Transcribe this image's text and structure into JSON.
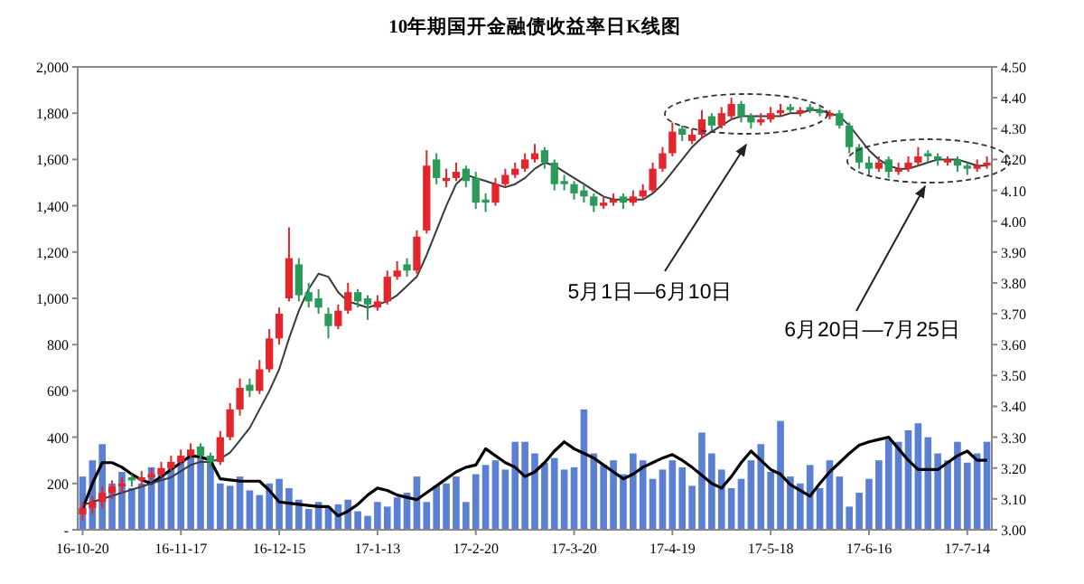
{
  "chart_data": {
    "type": "candlestick",
    "title": "10年期国开金融债收益率日K线图",
    "categories": [
      "16-10-20",
      null,
      null,
      null,
      null,
      null,
      null,
      null,
      null,
      null,
      "16-11-17",
      null,
      null,
      null,
      null,
      null,
      null,
      null,
      null,
      null,
      "16-12-15",
      null,
      null,
      null,
      null,
      null,
      null,
      null,
      null,
      null,
      "17-1-13",
      null,
      null,
      null,
      null,
      null,
      null,
      null,
      null,
      null,
      "17-2-20",
      null,
      null,
      null,
      null,
      null,
      null,
      null,
      null,
      null,
      "17-3-20",
      null,
      null,
      null,
      null,
      null,
      null,
      null,
      null,
      null,
      "17-4-19",
      null,
      null,
      null,
      null,
      null,
      null,
      null,
      null,
      null,
      "17-5-18",
      null,
      null,
      null,
      null,
      null,
      null,
      null,
      null,
      null,
      "17-6-16",
      null,
      null,
      null,
      null,
      null,
      null,
      null,
      null,
      null,
      "17-7-14",
      null,
      null
    ],
    "ohlc": [
      [
        3.05,
        3.09,
        3.03,
        3.07
      ],
      [
        3.07,
        3.11,
        3.05,
        3.09
      ],
      [
        3.09,
        3.14,
        3.07,
        3.12
      ],
      [
        3.12,
        3.16,
        3.1,
        3.14
      ],
      [
        3.14,
        3.17,
        3.12,
        3.15
      ],
      [
        3.17,
        3.18,
        3.14,
        3.16
      ],
      [
        3.16,
        3.19,
        3.14,
        3.17
      ],
      [
        3.17,
        3.2,
        3.16,
        3.18
      ],
      [
        3.18,
        3.22,
        3.17,
        3.2
      ],
      [
        3.2,
        3.24,
        3.19,
        3.22
      ],
      [
        3.22,
        3.26,
        3.21,
        3.24
      ],
      [
        3.24,
        3.28,
        3.23,
        3.26
      ],
      [
        3.27,
        3.28,
        3.23,
        3.24
      ],
      [
        3.24,
        3.25,
        3.2,
        3.22
      ],
      [
        3.22,
        3.32,
        3.21,
        3.3
      ],
      [
        3.3,
        3.41,
        3.29,
        3.39
      ],
      [
        3.39,
        3.49,
        3.37,
        3.46
      ],
      [
        3.47,
        3.49,
        3.43,
        3.45
      ],
      [
        3.45,
        3.55,
        3.44,
        3.52
      ],
      [
        3.52,
        3.65,
        3.51,
        3.62
      ],
      [
        3.62,
        3.72,
        3.6,
        3.7
      ],
      [
        3.75,
        3.98,
        3.74,
        3.88
      ],
      [
        3.86,
        3.88,
        3.74,
        3.76
      ],
      [
        3.77,
        3.8,
        3.72,
        3.74
      ],
      [
        3.75,
        3.78,
        3.7,
        3.72
      ],
      [
        3.7,
        3.72,
        3.62,
        3.66
      ],
      [
        3.66,
        3.73,
        3.65,
        3.71
      ],
      [
        3.71,
        3.8,
        3.7,
        3.77
      ],
      [
        3.77,
        3.78,
        3.72,
        3.74
      ],
      [
        3.75,
        3.76,
        3.68,
        3.73
      ],
      [
        3.72,
        3.76,
        3.71,
        3.74
      ],
      [
        3.74,
        3.84,
        3.73,
        3.82
      ],
      [
        3.82,
        3.87,
        3.81,
        3.84
      ],
      [
        3.86,
        3.88,
        3.82,
        3.84
      ],
      [
        3.84,
        3.97,
        3.83,
        3.95
      ],
      [
        3.97,
        4.23,
        3.96,
        4.18
      ],
      [
        4.2,
        4.22,
        4.12,
        4.14
      ],
      [
        4.13,
        4.17,
        4.11,
        4.14
      ],
      [
        4.14,
        4.19,
        4.13,
        4.16
      ],
      [
        4.17,
        4.18,
        4.11,
        4.13
      ],
      [
        4.14,
        4.16,
        4.04,
        4.06
      ],
      [
        4.07,
        4.09,
        4.03,
        4.06
      ],
      [
        4.06,
        4.14,
        4.05,
        4.12
      ],
      [
        4.12,
        4.17,
        4.11,
        4.15
      ],
      [
        4.15,
        4.19,
        4.14,
        4.17
      ],
      [
        4.17,
        4.22,
        4.16,
        4.2
      ],
      [
        4.2,
        4.25,
        4.19,
        4.22
      ],
      [
        4.23,
        4.24,
        4.17,
        4.19
      ],
      [
        4.19,
        4.2,
        4.1,
        4.12
      ],
      [
        4.13,
        4.15,
        4.1,
        4.12
      ],
      [
        4.12,
        4.13,
        4.07,
        4.09
      ],
      [
        4.1,
        4.12,
        4.06,
        4.08
      ],
      [
        4.08,
        4.09,
        4.03,
        4.05
      ],
      [
        4.05,
        4.08,
        4.04,
        4.06
      ],
      [
        4.06,
        4.09,
        4.05,
        4.07
      ],
      [
        4.08,
        4.09,
        4.04,
        4.06
      ],
      [
        4.06,
        4.1,
        4.05,
        4.08
      ],
      [
        4.08,
        4.12,
        4.07,
        4.1
      ],
      [
        4.1,
        4.19,
        4.09,
        4.17
      ],
      [
        4.17,
        4.24,
        4.16,
        4.22
      ],
      [
        4.22,
        4.32,
        4.21,
        4.29
      ],
      [
        4.3,
        4.31,
        4.26,
        4.28
      ],
      [
        4.26,
        4.3,
        4.25,
        4.28
      ],
      [
        4.28,
        4.36,
        4.27,
        4.33
      ],
      [
        4.34,
        4.35,
        4.29,
        4.31
      ],
      [
        4.31,
        4.37,
        4.3,
        4.35
      ],
      [
        4.34,
        4.4,
        4.33,
        4.38
      ],
      [
        4.38,
        4.39,
        4.32,
        4.34
      ],
      [
        4.34,
        4.35,
        4.3,
        4.32
      ],
      [
        4.32,
        4.35,
        4.31,
        4.33
      ],
      [
        4.33,
        4.37,
        4.32,
        4.35
      ],
      [
        4.35,
        4.38,
        4.34,
        4.36
      ],
      [
        4.37,
        4.38,
        4.35,
        4.36
      ],
      [
        4.35,
        4.37,
        4.34,
        4.36
      ],
      [
        4.37,
        4.38,
        4.35,
        4.36
      ],
      [
        4.36,
        4.37,
        4.34,
        4.35
      ],
      [
        4.34,
        4.36,
        4.33,
        4.35
      ],
      [
        4.35,
        4.36,
        4.3,
        4.31
      ],
      [
        4.31,
        4.32,
        4.22,
        4.24
      ],
      [
        4.24,
        4.25,
        4.17,
        4.19
      ],
      [
        4.19,
        4.21,
        4.15,
        4.17
      ],
      [
        4.17,
        4.21,
        4.16,
        4.19
      ],
      [
        4.2,
        4.21,
        4.14,
        4.16
      ],
      [
        4.16,
        4.19,
        4.15,
        4.17
      ],
      [
        4.17,
        4.21,
        4.16,
        4.19
      ],
      [
        4.19,
        4.24,
        4.18,
        4.21
      ],
      [
        4.22,
        4.23,
        4.19,
        4.21
      ],
      [
        4.21,
        4.22,
        4.18,
        4.2
      ],
      [
        4.19,
        4.21,
        4.18,
        4.2
      ],
      [
        4.2,
        4.21,
        4.16,
        4.18
      ],
      [
        4.18,
        4.19,
        4.15,
        4.17
      ],
      [
        4.17,
        4.2,
        4.16,
        4.18
      ],
      [
        4.18,
        4.21,
        4.17,
        4.19
      ]
    ],
    "colors": [
      "#e3262b",
      "#e3262b",
      "#e3262b",
      "#e3262b",
      "#e3262b",
      "#2a9a58",
      "#e3262b",
      "#e3262b",
      "#e3262b",
      "#e3262b",
      "#e3262b",
      "#e3262b",
      "#2a9a58",
      "#2a9a58",
      "#e3262b",
      "#e3262b",
      "#e3262b",
      "#2a9a58",
      "#e3262b",
      "#e3262b",
      "#e3262b",
      "#e3262b",
      "#2a9a58",
      "#2a9a58",
      "#2a9a58",
      "#2a9a58",
      "#e3262b",
      "#e3262b",
      "#2a9a58",
      "#2a9a58",
      "#e3262b",
      "#e3262b",
      "#e3262b",
      "#2a9a58",
      "#e3262b",
      "#e3262b",
      "#2a9a58",
      "#e3262b",
      "#e3262b",
      "#2a9a58",
      "#2a9a58",
      "#2a9a58",
      "#e3262b",
      "#e3262b",
      "#e3262b",
      "#e3262b",
      "#e3262b",
      "#2a9a58",
      "#2a9a58",
      "#2a9a58",
      "#2a9a58",
      "#2a9a58",
      "#2a9a58",
      "#e3262b",
      "#e3262b",
      "#2a9a58",
      "#e3262b",
      "#e3262b",
      "#e3262b",
      "#e3262b",
      "#e3262b",
      "#2a9a58",
      "#e3262b",
      "#e3262b",
      "#2a9a58",
      "#e3262b",
      "#e3262b",
      "#2a9a58",
      "#2a9a58",
      "#e3262b",
      "#e3262b",
      "#e3262b",
      "#2a9a58",
      "#e3262b",
      "#2a9a58",
      "#2a9a58",
      "#e3262b",
      "#2a9a58",
      "#2a9a58",
      "#2a9a58",
      "#2a9a58",
      "#e3262b",
      "#2a9a58",
      "#e3262b",
      "#e3262b",
      "#e3262b",
      "#2a9a58",
      "#2a9a58",
      "#e3262b",
      "#2a9a58",
      "#2a9a58",
      "#e3262b",
      "#e3262b"
    ],
    "series": [
      {
        "type": "bar",
        "axis": "y2",
        "color": "#5b7fd3",
        "values": [
          230,
          300,
          370,
          200,
          250,
          180,
          200,
          270,
          250,
          280,
          300,
          340,
          310,
          290,
          200,
          190,
          230,
          170,
          150,
          200,
          220,
          180,
          130,
          90,
          120,
          100,
          110,
          130,
          80,
          60,
          120,
          100,
          140,
          160,
          230,
          120,
          190,
          200,
          230,
          120,
          240,
          280,
          300,
          260,
          380,
          380,
          330,
          290,
          310,
          260,
          270,
          520,
          330,
          280,
          300,
          240,
          330,
          300,
          220,
          260,
          300,
          270,
          190,
          420,
          330,
          260,
          180,
          220,
          300,
          370,
          250,
          470,
          230,
          200,
          280,
          180,
          300,
          230,
          100,
          160,
          220,
          300,
          390,
          380,
          430,
          460,
          400,
          330,
          300,
          380,
          290,
          330,
          380
        ]
      },
      {
        "type": "line",
        "axis": "y2",
        "color": "#000000",
        "values": [
          90,
          200,
          290,
          290,
          270,
          240,
          215,
          200,
          230,
          260,
          290,
          320,
          315,
          300,
          220,
          215,
          210,
          210,
          210,
          170,
          120,
          115,
          110,
          105,
          100,
          100,
          60,
          80,
          110,
          150,
          180,
          170,
          150,
          140,
          130,
          160,
          190,
          220,
          250,
          270,
          280,
          350,
          320,
          290,
          270,
          230,
          250,
          290,
          340,
          380,
          350,
          330,
          310,
          280,
          250,
          220,
          240,
          270,
          290,
          310,
          325,
          300,
          270,
          235,
          200,
          180,
          230,
          290,
          340,
          300,
          260,
          240,
          195,
          170,
          145,
          200,
          250,
          290,
          330,
          365,
          380,
          390,
          400,
          350,
          300,
          260,
          260,
          260,
          290,
          320,
          340,
          300,
          300
        ]
      },
      {
        "type": "line",
        "axis": "y",
        "color": "#3a3a3a",
        "values": [
          3.08,
          3.09,
          3.1,
          3.11,
          3.12,
          3.13,
          3.14,
          3.15,
          3.16,
          3.17,
          3.19,
          3.21,
          3.22,
          3.22,
          3.23,
          3.25,
          3.29,
          3.33,
          3.39,
          3.45,
          3.52,
          3.62,
          3.71,
          3.78,
          3.83,
          3.82,
          3.77,
          3.74,
          3.73,
          3.72,
          3.73,
          3.74,
          3.76,
          3.79,
          3.82,
          3.89,
          3.97,
          4.05,
          4.12,
          4.15,
          4.14,
          4.13,
          4.12,
          4.11,
          4.12,
          4.14,
          4.17,
          4.19,
          4.18,
          4.16,
          4.14,
          4.12,
          4.1,
          4.08,
          4.07,
          4.07,
          4.07,
          4.07,
          4.09,
          4.12,
          4.16,
          4.2,
          4.24,
          4.27,
          4.29,
          4.31,
          4.33,
          4.34,
          4.34,
          4.34,
          4.34,
          4.34,
          4.35,
          4.35,
          4.36,
          4.36,
          4.35,
          4.34,
          4.31,
          4.27,
          4.23,
          4.2,
          4.18,
          4.17,
          4.17,
          4.18,
          4.19,
          4.2,
          4.2,
          4.2,
          4.19,
          4.18,
          4.18
        ]
      }
    ],
    "y2lim": [
      0,
      2000
    ],
    "y2ticks": [
      {
        "value": 0,
        "label": "-"
      },
      200,
      400,
      600,
      800,
      {
        "value": 1000,
        "label": "1,000"
      },
      {
        "value": 1200,
        "label": "1,200"
      },
      {
        "value": 1400,
        "label": "1,400"
      },
      {
        "value": 1600,
        "label": "1,600"
      },
      {
        "value": 1800,
        "label": "1,800"
      },
      {
        "value": 2000,
        "label": "2,000"
      }
    ],
    "ylim": [
      3,
      4.5
    ],
    "yticks": [
      {
        "value": 3,
        "label": "3.00"
      },
      {
        "value": 3.1,
        "label": "3.10"
      },
      {
        "value": 3.2,
        "label": "3.20"
      },
      {
        "value": 3.3,
        "label": "3.30"
      },
      {
        "value": 3.4,
        "label": "3.40"
      },
      {
        "value": 3.5,
        "label": "3.50"
      },
      {
        "value": 3.6,
        "label": "3.60"
      },
      {
        "value": 3.7,
        "label": "3.70"
      },
      {
        "value": 3.8,
        "label": "3.80"
      },
      {
        "value": 3.9,
        "label": "3.90"
      },
      {
        "value": 4,
        "label": "4.00"
      },
      {
        "value": 4.1,
        "label": "4.10"
      },
      {
        "value": 4.2,
        "label": "4.20"
      },
      {
        "value": 4.3,
        "label": "4.30"
      },
      {
        "value": 4.4,
        "label": "4.40"
      },
      {
        "value": 4.5,
        "label": "4.50"
      }
    ],
    "annotations": [
      "5月1日—6月10日",
      "6月20日—7月25日"
    ],
    "grid": false
  }
}
